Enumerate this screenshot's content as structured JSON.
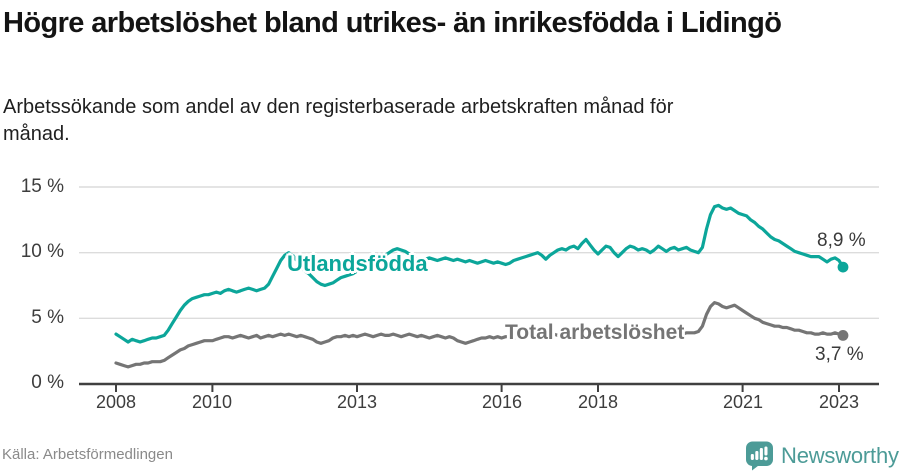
{
  "header": {
    "title": "Högre arbetslöshet bland utrikes- än inrikesfödda i Lidingö",
    "subtitle": "Arbetssökande som andel av den registerbaserade arbetskraften månad för månad."
  },
  "chart_data": {
    "type": "line",
    "title": "Högre arbetslöshet bland utrikes- än inrikesfödda i Lidingö",
    "subtitle": "Arbetssökande som andel av den registerbaserade arbetskraften månad för månad.",
    "x_start_year": 2008,
    "x_end_label": "2023",
    "points_per_year": 12,
    "ylim": [
      0,
      15
    ],
    "grid": true,
    "legend_position": "inline-labels",
    "y_ticks": [
      {
        "value": 15,
        "label": "15 %"
      },
      {
        "value": 10,
        "label": "10 %"
      },
      {
        "value": 5,
        "label": "5 %"
      },
      {
        "value": 0,
        "label": "0 %"
      }
    ],
    "x_ticks": [
      {
        "year": 2008,
        "label": "2008"
      },
      {
        "year": 2010,
        "label": "2010"
      },
      {
        "year": 2013,
        "label": "2013"
      },
      {
        "year": 2016,
        "label": "2016"
      },
      {
        "year": 2018,
        "label": "2018"
      },
      {
        "year": 2021,
        "label": "2021"
      },
      {
        "year": 2023,
        "label": "2023"
      }
    ],
    "series": [
      {
        "name": "Utlandsfödda",
        "color": "#0ca69a",
        "end_value": 8.9,
        "end_value_label": "8,9 %",
        "values": [
          3.8,
          3.6,
          3.4,
          3.2,
          3.4,
          3.3,
          3.2,
          3.3,
          3.4,
          3.5,
          3.5,
          3.6,
          3.7,
          4.1,
          4.6,
          5.1,
          5.6,
          6.0,
          6.3,
          6.5,
          6.6,
          6.7,
          6.8,
          6.8,
          6.9,
          7.0,
          6.9,
          7.1,
          7.2,
          7.1,
          7.0,
          7.1,
          7.2,
          7.3,
          7.2,
          7.1,
          7.2,
          7.3,
          7.6,
          8.2,
          8.8,
          9.4,
          9.8,
          10.0,
          9.8,
          9.4,
          9.0,
          8.6,
          8.4,
          8.1,
          7.8,
          7.6,
          7.5,
          7.6,
          7.7,
          7.9,
          8.1,
          8.2,
          8.3,
          8.4,
          8.6,
          8.8,
          9.0,
          9.2,
          9.4,
          9.5,
          9.7,
          9.8,
          10.0,
          10.2,
          10.3,
          10.2,
          10.1,
          9.9,
          9.6,
          9.5,
          9.4,
          9.5,
          9.6,
          9.5,
          9.4,
          9.5,
          9.6,
          9.5,
          9.4,
          9.5,
          9.4,
          9.3,
          9.4,
          9.3,
          9.2,
          9.3,
          9.4,
          9.3,
          9.2,
          9.3,
          9.2,
          9.1,
          9.2,
          9.4,
          9.5,
          9.6,
          9.7,
          9.8,
          9.9,
          10.0,
          9.8,
          9.5,
          9.8,
          10.0,
          10.2,
          10.3,
          10.2,
          10.4,
          10.5,
          10.3,
          10.7,
          11.0,
          10.6,
          10.2,
          9.9,
          10.2,
          10.5,
          10.4,
          10.0,
          9.7,
          10.0,
          10.3,
          10.5,
          10.4,
          10.2,
          10.3,
          10.2,
          10.0,
          10.2,
          10.5,
          10.3,
          10.1,
          10.3,
          10.4,
          10.2,
          10.3,
          10.4,
          10.2,
          10.1,
          10.0,
          10.4,
          11.8,
          12.9,
          13.5,
          13.6,
          13.4,
          13.3,
          13.4,
          13.2,
          13.0,
          12.9,
          12.8,
          12.5,
          12.3,
          12.0,
          11.8,
          11.5,
          11.2,
          11.0,
          10.9,
          10.7,
          10.5,
          10.3,
          10.1,
          10.0,
          9.9,
          9.8,
          9.7,
          9.7,
          9.7,
          9.5,
          9.3,
          9.5,
          9.6,
          9.4,
          8.9
        ]
      },
      {
        "name": "Total arbetslöshet",
        "color": "#757575",
        "end_value": 3.7,
        "end_value_label": "3,7 %",
        "values": [
          1.6,
          1.5,
          1.4,
          1.3,
          1.4,
          1.5,
          1.5,
          1.6,
          1.6,
          1.7,
          1.7,
          1.7,
          1.8,
          2.0,
          2.2,
          2.4,
          2.6,
          2.7,
          2.9,
          3.0,
          3.1,
          3.2,
          3.3,
          3.3,
          3.3,
          3.4,
          3.5,
          3.6,
          3.6,
          3.5,
          3.6,
          3.7,
          3.6,
          3.5,
          3.6,
          3.7,
          3.5,
          3.6,
          3.7,
          3.6,
          3.7,
          3.8,
          3.7,
          3.8,
          3.7,
          3.6,
          3.7,
          3.6,
          3.5,
          3.4,
          3.2,
          3.1,
          3.2,
          3.3,
          3.5,
          3.6,
          3.6,
          3.7,
          3.6,
          3.7,
          3.6,
          3.7,
          3.8,
          3.7,
          3.6,
          3.7,
          3.8,
          3.7,
          3.7,
          3.8,
          3.7,
          3.6,
          3.7,
          3.8,
          3.7,
          3.6,
          3.7,
          3.6,
          3.5,
          3.6,
          3.7,
          3.6,
          3.5,
          3.6,
          3.5,
          3.3,
          3.2,
          3.1,
          3.2,
          3.3,
          3.4,
          3.5,
          3.5,
          3.6,
          3.5,
          3.6,
          3.5,
          3.6,
          3.6,
          3.5,
          3.6,
          3.7,
          3.6,
          3.7,
          3.6,
          3.7,
          3.8,
          3.7,
          3.7,
          3.8,
          3.7,
          3.8,
          3.9,
          3.8,
          3.7,
          3.8,
          3.9,
          3.8,
          3.7,
          3.8,
          3.8,
          3.7,
          3.8,
          3.9,
          3.8,
          3.9,
          3.8,
          3.9,
          3.8,
          3.9,
          4.0,
          3.9,
          3.9,
          3.8,
          3.9,
          4.0,
          3.9,
          3.8,
          3.9,
          4.0,
          3.9,
          3.8,
          3.9,
          3.9,
          3.9,
          4.0,
          4.4,
          5.3,
          5.9,
          6.2,
          6.1,
          5.9,
          5.8,
          5.9,
          6.0,
          5.8,
          5.6,
          5.4,
          5.2,
          5.0,
          4.9,
          4.7,
          4.6,
          4.5,
          4.4,
          4.4,
          4.3,
          4.3,
          4.2,
          4.1,
          4.1,
          4.0,
          3.9,
          3.9,
          3.8,
          3.8,
          3.9,
          3.8,
          3.8,
          3.9,
          3.8,
          3.7
        ]
      }
    ]
  },
  "footer": {
    "source": "Källa: Arbetsförmedlingen",
    "brand": "Newsworthy",
    "brand_color": "#4c9b97"
  }
}
